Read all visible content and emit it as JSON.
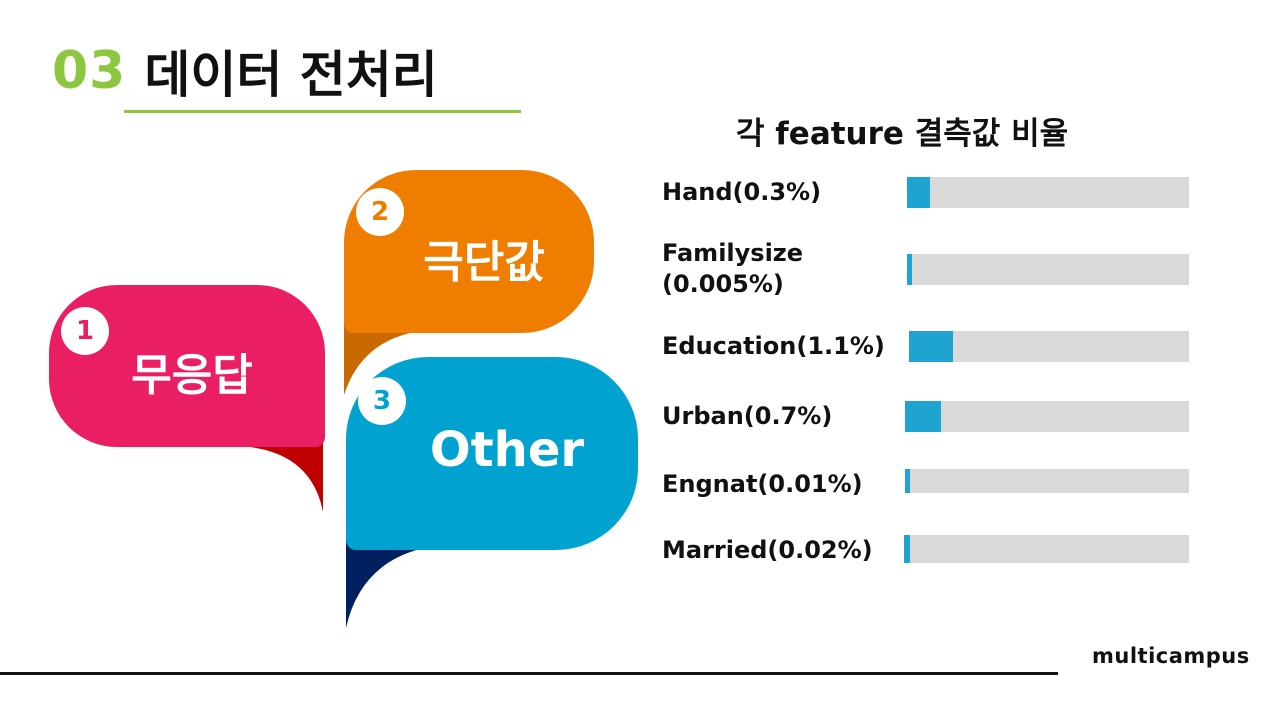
{
  "title": {
    "number": "03",
    "text": "데이터 전처리"
  },
  "bubbles": [
    {
      "number": "1",
      "label": "무응답",
      "color": "#e91e63",
      "shadow": "#c00000"
    },
    {
      "number": "2",
      "label": "극단값",
      "color": "#ef7d00",
      "shadow": "#c96a00"
    },
    {
      "number": "3",
      "label": "Other",
      "color": "#00a3cf",
      "shadow": "#002060"
    }
  ],
  "chart": {
    "title": "각 feature  결측값 비율",
    "bar_color": "#1fa3d1",
    "track_color": "#d9d9d9",
    "rows": [
      {
        "label": "Hand(0.3%)",
        "percent": 0.3
      },
      {
        "label": "Familysize\n(0.005%)",
        "percent": 0.005
      },
      {
        "label": "Education(1.1%)",
        "percent": 1.1
      },
      {
        "label": "Urban(0.7%)",
        "percent": 0.7
      },
      {
        "label": "Engnat(0.01%)",
        "percent": 0.01
      },
      {
        "label": "Married(0.02%)",
        "percent": 0.02
      }
    ]
  },
  "brand": "multicampus"
}
